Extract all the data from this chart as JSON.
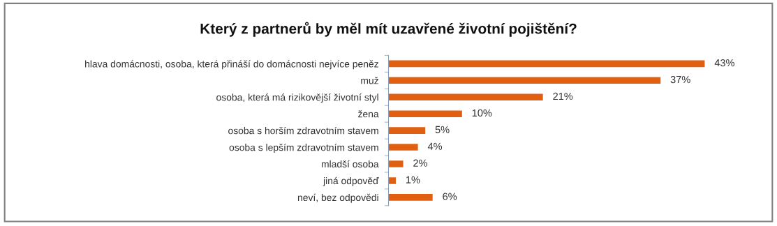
{
  "chart_data": {
    "type": "bar",
    "orientation": "horizontal",
    "title": "Který z partnerů by měl mít uzavřené životní pojištění?",
    "categories": [
      "hlava domácnosti, osoba, která přináší do domácnosti nejvíce peněz",
      "muž",
      "osoba, která má rizikovější životní styl",
      "žena",
      "osoba s horším zdravotním stavem",
      "osoba s lepším zdravotním stavem",
      "mladší osoba",
      "jiná odpověď",
      "neví, bez odpovědi"
    ],
    "values": [
      43,
      37,
      21,
      10,
      5,
      4,
      2,
      1,
      6
    ],
    "value_labels": [
      "43%",
      "37%",
      "21%",
      "10%",
      "5%",
      "4%",
      "2%",
      "1%",
      "6%"
    ],
    "color": "#e05f10",
    "grid": false,
    "legend": false
  }
}
